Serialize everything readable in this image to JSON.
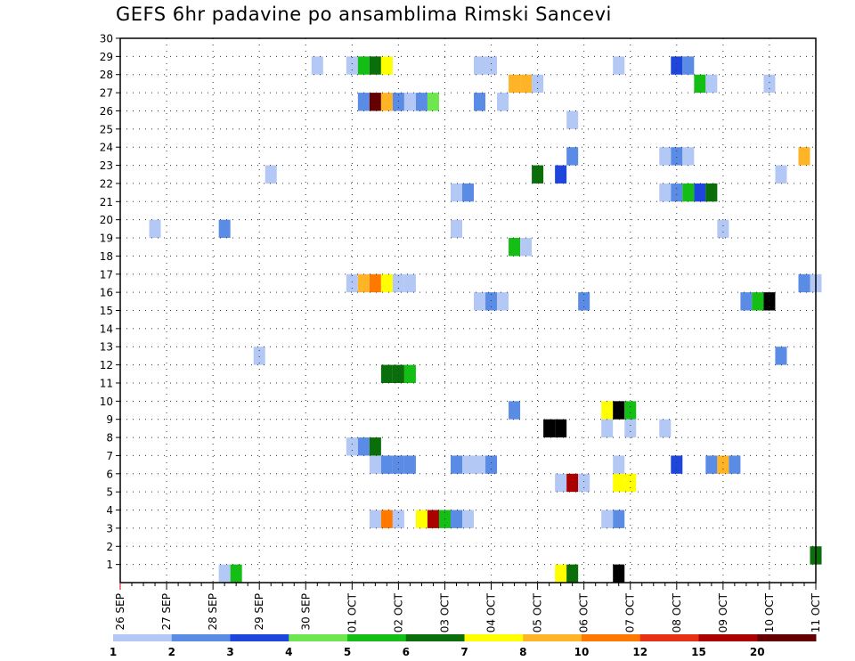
{
  "chart_data": {
    "type": "heatmap",
    "title": "GEFS 6hr padavine po ansamblima Rimski Sancevi",
    "xlabel": "",
    "ylabel": "",
    "x_ticks": [
      "26 SEP",
      "27 SEP",
      "28 SEP",
      "29 SEP",
      "30 SEP",
      "01 OCT",
      "02 OCT",
      "03 OCT",
      "04 OCT",
      "05 OCT",
      "06 OCT",
      "07 OCT",
      "08 OCT",
      "09 OCT",
      "10 OCT",
      "11 OCT"
    ],
    "y_ticks": [
      "1",
      "2",
      "3",
      "4",
      "5",
      "6",
      "7",
      "8",
      "9",
      "10",
      "11",
      "12",
      "13",
      "14",
      "15",
      "16",
      "17",
      "18",
      "19",
      "20",
      "21",
      "22",
      "23",
      "24",
      "25",
      "26",
      "27",
      "28",
      "29",
      "30"
    ],
    "x_steps": 60,
    "ylim": [
      0,
      30
    ],
    "grid": true,
    "colorbar": {
      "labels": [
        "1",
        "2",
        "3",
        "4",
        "5",
        "6",
        "7",
        "8",
        "10",
        "12",
        "15",
        "20"
      ],
      "colors": [
        "#b4c8f5",
        "#5a8ce6",
        "#1e46dc",
        "#6ee650",
        "#14be14",
        "#0a6e0a",
        "#ffff00",
        "#ffb428",
        "#ff7800",
        "#e63214",
        "#aa0000",
        "#640000"
      ]
    },
    "cells": [
      [
        29,
        17,
        0
      ],
      [
        29,
        20,
        0
      ],
      [
        29,
        21,
        4
      ],
      [
        29,
        22,
        5
      ],
      [
        29,
        23,
        6
      ],
      [
        29,
        31,
        0
      ],
      [
        29,
        32,
        0
      ],
      [
        29,
        43,
        0
      ],
      [
        29,
        48,
        2
      ],
      [
        29,
        49,
        1
      ],
      [
        28,
        34,
        7
      ],
      [
        28,
        35,
        7
      ],
      [
        28,
        36,
        0
      ],
      [
        28,
        50,
        4
      ],
      [
        28,
        51,
        0
      ],
      [
        28,
        56,
        0
      ],
      [
        27,
        21,
        1
      ],
      [
        27,
        22,
        11
      ],
      [
        27,
        23,
        7
      ],
      [
        27,
        24,
        1
      ],
      [
        27,
        25,
        0
      ],
      [
        27,
        26,
        1
      ],
      [
        27,
        27,
        3
      ],
      [
        27,
        31,
        1
      ],
      [
        27,
        33,
        0
      ],
      [
        26,
        39,
        0
      ],
      [
        24,
        39,
        1
      ],
      [
        24,
        47,
        0
      ],
      [
        24,
        48,
        1
      ],
      [
        24,
        49,
        0
      ],
      [
        24,
        59,
        7
      ],
      [
        23,
        13,
        0
      ],
      [
        23,
        36,
        5
      ],
      [
        23,
        38,
        2
      ],
      [
        23,
        57,
        0
      ],
      [
        22,
        29,
        0
      ],
      [
        22,
        30,
        1
      ],
      [
        22,
        47,
        0
      ],
      [
        22,
        48,
        1
      ],
      [
        22,
        49,
        4
      ],
      [
        22,
        50,
        2
      ],
      [
        22,
        51,
        5
      ],
      [
        20,
        3,
        0
      ],
      [
        20,
        9,
        1
      ],
      [
        20,
        29,
        0
      ],
      [
        20,
        52,
        0
      ],
      [
        19,
        34,
        4
      ],
      [
        19,
        35,
        0
      ],
      [
        17,
        20,
        0
      ],
      [
        17,
        21,
        7
      ],
      [
        17,
        22,
        8
      ],
      [
        17,
        23,
        6
      ],
      [
        17,
        24,
        0
      ],
      [
        17,
        25,
        0
      ],
      [
        17,
        59,
        1
      ],
      [
        17,
        60,
        0
      ],
      [
        16,
        31,
        0
      ],
      [
        16,
        32,
        1
      ],
      [
        16,
        33,
        0
      ],
      [
        16,
        40,
        1
      ],
      [
        16,
        54,
        1
      ],
      [
        16,
        55,
        4
      ],
      [
        16,
        56,
        12
      ],
      [
        13,
        12,
        0
      ],
      [
        13,
        57,
        1
      ],
      [
        12,
        23,
        5
      ],
      [
        12,
        24,
        5
      ],
      [
        12,
        25,
        4
      ],
      [
        10,
        34,
        1
      ],
      [
        10,
        42,
        6
      ],
      [
        10,
        43,
        12
      ],
      [
        10,
        44,
        4
      ],
      [
        9,
        37,
        12
      ],
      [
        9,
        38,
        12
      ],
      [
        9,
        42,
        0
      ],
      [
        9,
        44,
        0
      ],
      [
        9,
        47,
        0
      ],
      [
        8,
        20,
        0
      ],
      [
        8,
        21,
        1
      ],
      [
        8,
        22,
        5
      ],
      [
        7,
        22,
        0
      ],
      [
        7,
        23,
        1
      ],
      [
        7,
        24,
        1
      ],
      [
        7,
        25,
        1
      ],
      [
        7,
        29,
        1
      ],
      [
        7,
        30,
        0
      ],
      [
        7,
        31,
        0
      ],
      [
        7,
        32,
        1
      ],
      [
        7,
        43,
        0
      ],
      [
        7,
        48,
        2
      ],
      [
        7,
        51,
        1
      ],
      [
        7,
        52,
        7
      ],
      [
        7,
        53,
        1
      ],
      [
        6,
        38,
        0
      ],
      [
        6,
        39,
        10
      ],
      [
        6,
        40,
        0
      ],
      [
        6,
        43,
        6
      ],
      [
        6,
        44,
        6
      ],
      [
        4,
        22,
        0
      ],
      [
        4,
        23,
        8
      ],
      [
        4,
        24,
        0
      ],
      [
        4,
        26,
        6
      ],
      [
        4,
        27,
        10
      ],
      [
        4,
        28,
        4
      ],
      [
        4,
        29,
        1
      ],
      [
        4,
        30,
        0
      ],
      [
        4,
        42,
        0
      ],
      [
        4,
        43,
        1
      ],
      [
        2,
        60,
        5
      ],
      [
        1,
        9,
        0
      ],
      [
        1,
        10,
        4
      ],
      [
        1,
        38,
        6
      ],
      [
        1,
        39,
        5
      ],
      [
        1,
        43,
        12
      ]
    ]
  }
}
